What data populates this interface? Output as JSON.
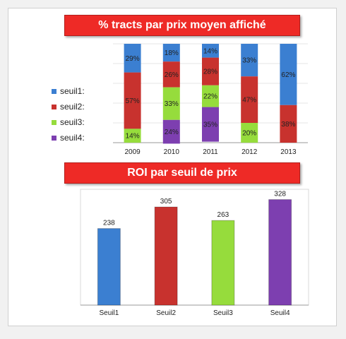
{
  "colors": {
    "seuil1": "#3b7fd1",
    "seuil2": "#c8322e",
    "seuil3": "#96dc3c",
    "seuil4": "#7d3fb0",
    "banner": "#ee2a26"
  },
  "chart_data": [
    {
      "type": "bar",
      "stacked": true,
      "percent": true,
      "title": "% tracts par prix moyen affiché",
      "legend_position": "left",
      "categories": [
        "2009",
        "2010",
        "2011",
        "2012",
        "2013"
      ],
      "series": [
        {
          "name": "seuil1:",
          "values": [
            29,
            18,
            14,
            33,
            62
          ],
          "labels": [
            "29%",
            "18%",
            "14%",
            "33%",
            "62%"
          ]
        },
        {
          "name": "seuil2:",
          "values": [
            57,
            26,
            28,
            47,
            38
          ],
          "labels": [
            "57%",
            "26%",
            "28%",
            "47%",
            "38%"
          ]
        },
        {
          "name": "seuil3:",
          "values": [
            14,
            33,
            22,
            20,
            0
          ],
          "labels": [
            "14%",
            "33%",
            "22%",
            "20%",
            ""
          ]
        },
        {
          "name": "seuil4:",
          "values": [
            0,
            24,
            35,
            0,
            0
          ],
          "labels": [
            "",
            "24%",
            "35%",
            "",
            ""
          ]
        }
      ]
    },
    {
      "type": "bar",
      "title": "ROI par seuil de prix",
      "categories": [
        "Seuil1",
        "Seuil2",
        "Seuil3",
        "Seuil4"
      ],
      "values": [
        238,
        305,
        263,
        328
      ],
      "ylim": [
        0,
        360
      ]
    }
  ]
}
